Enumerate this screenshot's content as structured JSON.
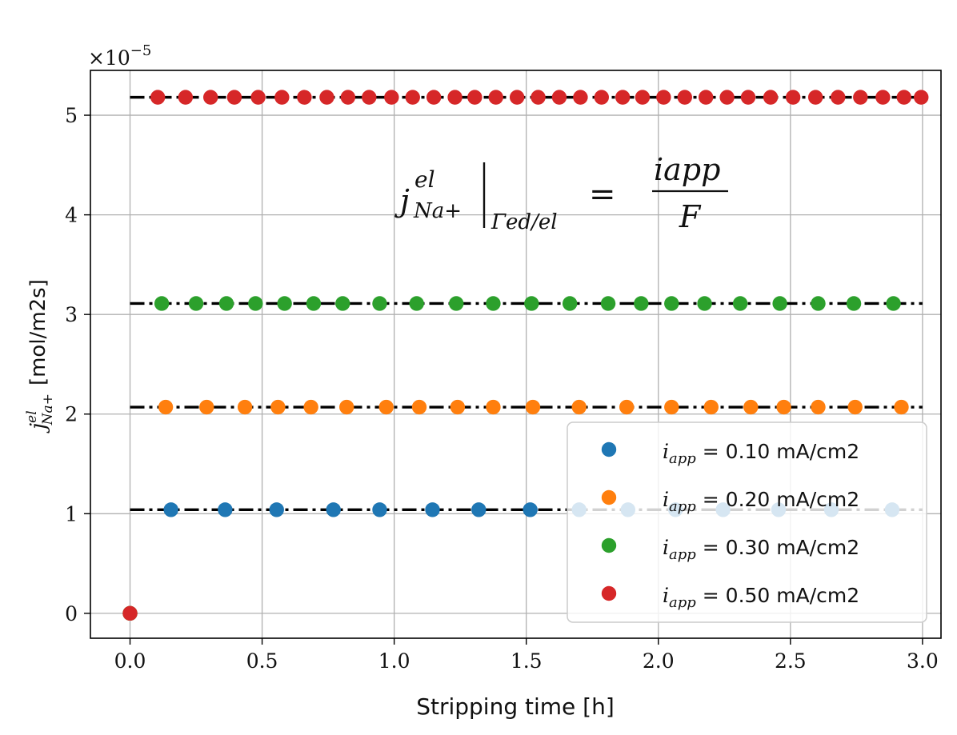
{
  "chart_data": {
    "type": "scatter",
    "title": "",
    "xlabel": "Stripping time [h]",
    "ylabel_main": "j",
    "ylabel_sup": "el",
    "ylabel_sub": "Na+",
    "ylabel_units": "[mol/m2s]",
    "xlim": [
      -0.15,
      3.07
    ],
    "ylim": [
      -0.25,
      5.45
    ],
    "xticks": [
      "0.0",
      "0.5",
      "1.0",
      "1.5",
      "2.0",
      "2.5",
      "3.0"
    ],
    "xtick_values": [
      0.0,
      0.5,
      1.0,
      1.5,
      2.0,
      2.5,
      3.0
    ],
    "yticks": [
      "0",
      "1",
      "2",
      "3",
      "4",
      "5"
    ],
    "ytick_values": [
      0,
      1,
      2,
      3,
      4,
      5
    ],
    "scale_label_prefix": "×10",
    "scale_label_exp": "−5",
    "grid": true,
    "legend_position": "lower-right",
    "formula": {
      "lhs_main": "j",
      "lhs_sup": "el",
      "lhs_sub": "Na+",
      "boundary_sub": "Γed/el",
      "equals": "=",
      "numerator": "iapp",
      "denominator": "F"
    },
    "series": [
      {
        "name": "i_app = 0.10 mA/cm2",
        "legend_var": "i",
        "legend_sub": "app",
        "legend_value": "= 0.10 mA/cm2",
        "color": "#1f77b4",
        "reference_value": 1.04,
        "x": [
          0.0,
          0.155,
          0.36,
          0.555,
          0.77,
          0.945,
          1.145,
          1.32,
          1.515,
          1.7,
          1.885,
          2.065,
          2.245,
          2.455,
          2.655,
          2.885
        ],
        "y": [
          0.0,
          1.04,
          1.04,
          1.04,
          1.04,
          1.04,
          1.04,
          1.04,
          1.04,
          1.04,
          1.04,
          1.04,
          1.04,
          1.04,
          1.04,
          1.04
        ]
      },
      {
        "name": "i_app = 0.20 mA/cm2",
        "legend_var": "i",
        "legend_sub": "app",
        "legend_value": "= 0.20 mA/cm2",
        "color": "#ff7f0e",
        "reference_value": 2.07,
        "x": [
          0.0,
          0.135,
          0.29,
          0.435,
          0.56,
          0.685,
          0.82,
          0.97,
          1.095,
          1.24,
          1.375,
          1.525,
          1.7,
          1.88,
          2.05,
          2.2,
          2.35,
          2.475,
          2.605,
          2.745,
          2.92
        ],
        "y": [
          0.0,
          2.07,
          2.07,
          2.07,
          2.07,
          2.07,
          2.07,
          2.07,
          2.07,
          2.07,
          2.07,
          2.07,
          2.07,
          2.07,
          2.07,
          2.07,
          2.07,
          2.07,
          2.07,
          2.07,
          2.07
        ]
      },
      {
        "name": "i_app = 0.30 mA/cm2",
        "legend_var": "i",
        "legend_sub": "app",
        "legend_value": "= 0.30 mA/cm2",
        "color": "#2ca02c",
        "reference_value": 3.11,
        "x": [
          0.0,
          0.12,
          0.25,
          0.365,
          0.475,
          0.585,
          0.695,
          0.805,
          0.945,
          1.085,
          1.235,
          1.375,
          1.52,
          1.665,
          1.81,
          1.935,
          2.05,
          2.175,
          2.31,
          2.46,
          2.605,
          2.74,
          2.89
        ],
        "y": [
          0.0,
          3.11,
          3.11,
          3.11,
          3.11,
          3.11,
          3.11,
          3.11,
          3.11,
          3.11,
          3.11,
          3.11,
          3.11,
          3.11,
          3.11,
          3.11,
          3.11,
          3.11,
          3.11,
          3.11,
          3.11,
          3.11,
          3.11
        ]
      },
      {
        "name": "i_app = 0.50 mA/cm2",
        "legend_var": "i",
        "legend_sub": "app",
        "legend_value": "= 0.50 mA/cm2",
        "color": "#d62728",
        "reference_value": 5.18,
        "x": [
          0.0,
          0.105,
          0.21,
          0.305,
          0.395,
          0.485,
          0.575,
          0.66,
          0.745,
          0.825,
          0.905,
          0.99,
          1.07,
          1.15,
          1.23,
          1.305,
          1.385,
          1.465,
          1.545,
          1.625,
          1.705,
          1.785,
          1.865,
          1.94,
          2.02,
          2.1,
          2.18,
          2.26,
          2.34,
          2.425,
          2.51,
          2.595,
          2.68,
          2.765,
          2.85,
          2.93,
          2.995
        ],
        "y": [
          0.0,
          5.18,
          5.18,
          5.18,
          5.18,
          5.18,
          5.18,
          5.18,
          5.18,
          5.18,
          5.18,
          5.18,
          5.18,
          5.18,
          5.18,
          5.18,
          5.18,
          5.18,
          5.18,
          5.18,
          5.18,
          5.18,
          5.18,
          5.18,
          5.18,
          5.18,
          5.18,
          5.18,
          5.18,
          5.18,
          5.18,
          5.18,
          5.18,
          5.18,
          5.18,
          5.18,
          5.18
        ]
      }
    ]
  }
}
